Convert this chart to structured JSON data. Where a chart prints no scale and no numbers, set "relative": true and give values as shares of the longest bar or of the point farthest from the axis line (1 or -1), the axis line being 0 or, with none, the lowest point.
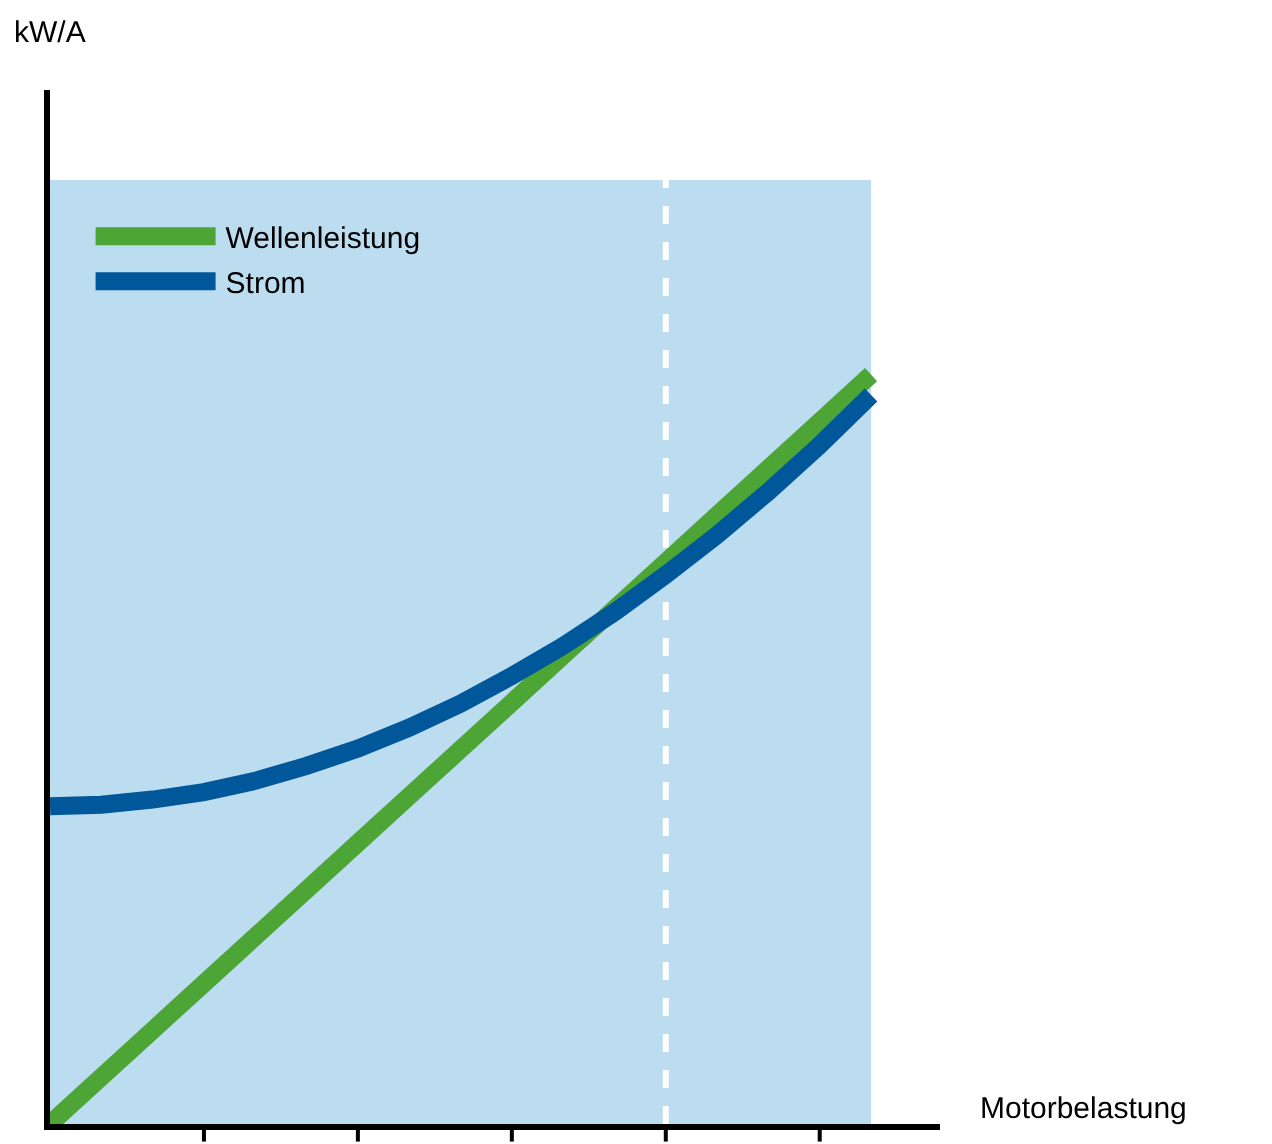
{
  "chart_data": {
    "type": "line",
    "relative": true,
    "xlabel": "Motorbelastung",
    "annotations": [
      "kW/A"
    ],
    "categories": [
      null,
      null,
      null,
      null,
      null,
      null,
      null,
      null,
      null,
      null,
      null,
      null,
      null,
      null,
      null,
      null,
      null
    ],
    "grid": false,
    "legend": "top left",
    "marker": "none",
    "line_style": "solid",
    "series": [
      {
        "name": "Wellenleistung",
        "color": "#4ca535",
        "values": [
          0,
          0.0625,
          0.125,
          0.1875,
          0.25,
          0.3125,
          0.375,
          0.4375,
          0.5,
          0.5625,
          0.625,
          0.6875,
          0.75,
          0.8125,
          0.875,
          0.9375,
          1
        ]
      },
      {
        "name": "Strom",
        "color": "#00589a",
        "values": [
          0.424,
          0.426,
          0.433,
          0.443,
          0.458,
          0.478,
          0.501,
          0.529,
          0.561,
          0.598,
          0.638,
          0.683,
          0.733,
          0.786,
          0.844,
          0.906,
          0.973
        ]
      }
    ],
    "ref_lines": [
      {
        "axis": "x",
        "color": "#ffffff",
        "line_style": "dashed"
      }
    ]
  }
}
